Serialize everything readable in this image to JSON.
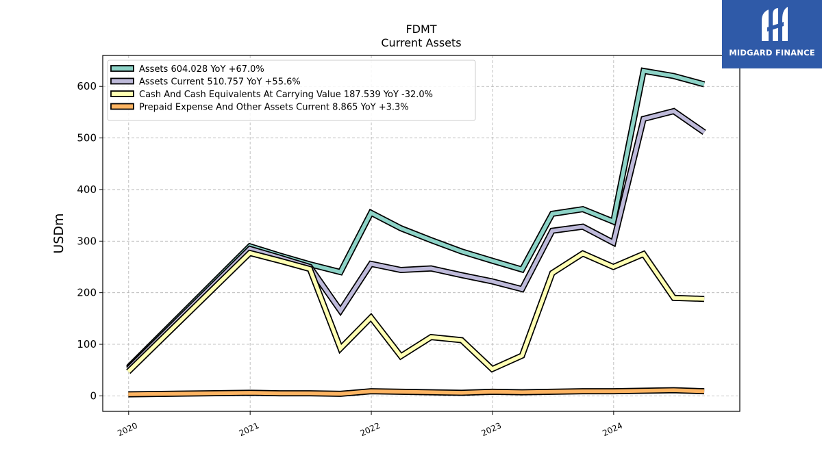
{
  "logo": {
    "text": "MIDGARD FINANCE"
  },
  "chart_data": {
    "type": "line",
    "title": "FDMT",
    "subtitle": "Current  Assets",
    "ylabel": "USDm",
    "xlabel": "",
    "xlim": [
      "2019-10-15",
      "2025-01-15"
    ],
    "ylim": [
      -30,
      660
    ],
    "yticks": [
      0,
      100,
      200,
      300,
      400,
      500,
      600
    ],
    "xticks": [
      {
        "label": "2020",
        "date": "2020-01-01"
      },
      {
        "label": "2021",
        "date": "2021-01-01"
      },
      {
        "label": "2022",
        "date": "2022-01-01"
      },
      {
        "label": "2023",
        "date": "2023-01-01"
      },
      {
        "label": "2024",
        "date": "2024-01-01"
      }
    ],
    "grid": true,
    "legend_position": "top-left",
    "series": [
      {
        "name": "Assets  604.028 YoY +67.0%",
        "color": "#8dd3c7",
        "points": [
          [
            "2019-12-31",
            55
          ],
          [
            "2020-12-31",
            290
          ],
          [
            "2021-03-31",
            272
          ],
          [
            "2021-06-30",
            255
          ],
          [
            "2021-09-30",
            240
          ],
          [
            "2021-12-31",
            355
          ],
          [
            "2022-03-31",
            325
          ],
          [
            "2022-06-30",
            302
          ],
          [
            "2022-09-30",
            280
          ],
          [
            "2022-12-31",
            262
          ],
          [
            "2023-03-31",
            245
          ],
          [
            "2023-06-30",
            353
          ],
          [
            "2023-09-30",
            362
          ],
          [
            "2023-12-31",
            338
          ],
          [
            "2024-03-31",
            630
          ],
          [
            "2024-06-30",
            620
          ],
          [
            "2024-09-30",
            604
          ]
        ]
      },
      {
        "name": "Assets Current  510.757 YoY +55.6%",
        "color": "#bebada",
        "points": [
          [
            "2019-12-31",
            52
          ],
          [
            "2020-12-31",
            285
          ],
          [
            "2021-03-31",
            268
          ],
          [
            "2021-06-30",
            250
          ],
          [
            "2021-09-30",
            165
          ],
          [
            "2021-12-31",
            256
          ],
          [
            "2022-03-31",
            244
          ],
          [
            "2022-06-30",
            247
          ],
          [
            "2022-09-30",
            234
          ],
          [
            "2022-12-31",
            222
          ],
          [
            "2023-03-31",
            207
          ],
          [
            "2023-06-30",
            320
          ],
          [
            "2023-09-30",
            328
          ],
          [
            "2023-12-31",
            297
          ],
          [
            "2024-03-31",
            537
          ],
          [
            "2024-06-30",
            552
          ],
          [
            "2024-09-30",
            511
          ]
        ]
      },
      {
        "name": "Cash And Cash Equivalents At Carrying Value  187.539 YoY -32.0%",
        "color": "#ffffb3",
        "points": [
          [
            "2019-12-31",
            47
          ],
          [
            "2020-12-31",
            277
          ],
          [
            "2021-03-31",
            262
          ],
          [
            "2021-06-30",
            246
          ],
          [
            "2021-09-30",
            92
          ],
          [
            "2021-12-31",
            152
          ],
          [
            "2022-03-31",
            77
          ],
          [
            "2022-06-30",
            114
          ],
          [
            "2022-09-30",
            108
          ],
          [
            "2022-12-31",
            52
          ],
          [
            "2023-03-31",
            78
          ],
          [
            "2023-06-30",
            238
          ],
          [
            "2023-09-30",
            276
          ],
          [
            "2023-12-31",
            250
          ],
          [
            "2024-03-31",
            275
          ],
          [
            "2024-06-30",
            190
          ],
          [
            "2024-09-30",
            188
          ]
        ]
      },
      {
        "name": "Prepaid Expense And Other Assets Current  8.865 YoY +3.3%",
        "color": "#fdb462",
        "points": [
          [
            "2019-12-31",
            3
          ],
          [
            "2020-12-31",
            6
          ],
          [
            "2021-03-31",
            5
          ],
          [
            "2021-06-30",
            5
          ],
          [
            "2021-09-30",
            4
          ],
          [
            "2021-12-31",
            9
          ],
          [
            "2022-03-31",
            8
          ],
          [
            "2022-06-30",
            7
          ],
          [
            "2022-09-30",
            6
          ],
          [
            "2022-12-31",
            8
          ],
          [
            "2023-03-31",
            7
          ],
          [
            "2023-06-30",
            8
          ],
          [
            "2023-09-30",
            9
          ],
          [
            "2023-12-31",
            9
          ],
          [
            "2024-03-31",
            10
          ],
          [
            "2024-06-30",
            11
          ],
          [
            "2024-09-30",
            9
          ]
        ]
      }
    ]
  }
}
